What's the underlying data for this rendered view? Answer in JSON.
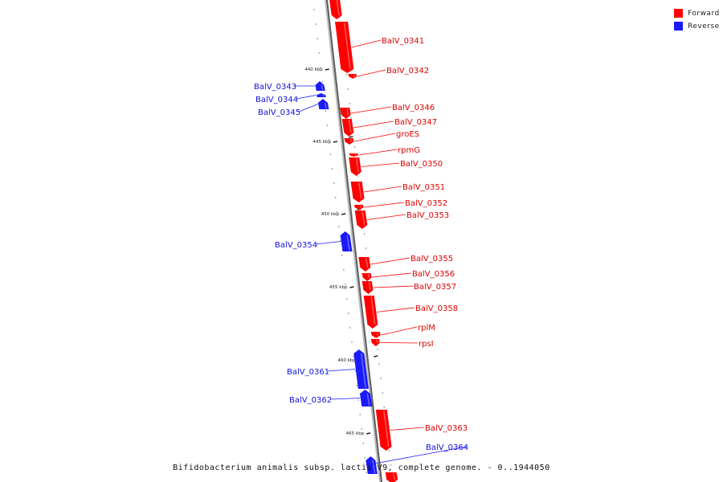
{
  "colors": {
    "forward": "#ff0000",
    "reverse": "#1a1aff",
    "backbone": "#8a8a8a",
    "tick": "#222222"
  },
  "legend": {
    "forward_label": "Forward",
    "reverse_label": "Reverse"
  },
  "caption": "Bifidobacterium animalis subsp. lactis V9, complete genome. - 0..1944050",
  "scale_labels": [
    "440 kbp",
    "445 kbp",
    "450 kbp",
    "455 kbp",
    "460 kbp",
    "465 kbp"
  ],
  "genes": [
    {
      "name": "",
      "strand": "forward"
    },
    {
      "name": "BalV_0341",
      "strand": "forward"
    },
    {
      "name": "BalV_0342",
      "strand": "forward"
    },
    {
      "name": "BalV_0343",
      "strand": "reverse"
    },
    {
      "name": "BalV_0344",
      "strand": "reverse"
    },
    {
      "name": "BalV_0345",
      "strand": "reverse"
    },
    {
      "name": "BalV_0346",
      "strand": "forward"
    },
    {
      "name": "BalV_0347",
      "strand": "forward"
    },
    {
      "name": "groES",
      "strand": "forward"
    },
    {
      "name": "rpmG",
      "strand": "forward"
    },
    {
      "name": "BalV_0350",
      "strand": "forward"
    },
    {
      "name": "BalV_0351",
      "strand": "forward"
    },
    {
      "name": "BalV_0352",
      "strand": "forward"
    },
    {
      "name": "BalV_0353",
      "strand": "forward"
    },
    {
      "name": "BalV_0354",
      "strand": "reverse"
    },
    {
      "name": "BalV_0355",
      "strand": "forward"
    },
    {
      "name": "BalV_0356",
      "strand": "forward"
    },
    {
      "name": "BalV_0357",
      "strand": "forward"
    },
    {
      "name": "BalV_0358",
      "strand": "forward"
    },
    {
      "name": "rplM",
      "strand": "forward"
    },
    {
      "name": "rpsI",
      "strand": "forward"
    },
    {
      "name": "BalV_0361",
      "strand": "reverse"
    },
    {
      "name": "BalV_0362",
      "strand": "reverse"
    },
    {
      "name": "BalV_0363",
      "strand": "forward"
    },
    {
      "name": "BalV_0364",
      "strand": "reverse"
    },
    {
      "name": "",
      "strand": "forward"
    }
  ]
}
